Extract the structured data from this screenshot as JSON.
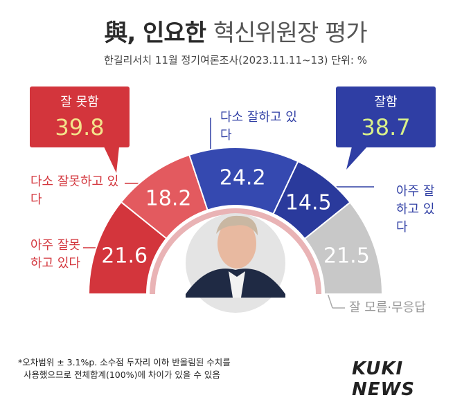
{
  "title": {
    "part1": "與, 인요한",
    "part2": "혁신위원장 평가"
  },
  "subtitle": "한길리서치 11월 정기여론조사(2023.11.11~13) 단위: %",
  "callouts": {
    "bad": {
      "label": "잘 못함",
      "value": "39.8"
    },
    "good": {
      "label": "잘함",
      "value": "38.7"
    }
  },
  "annotations": {
    "somewhat_bad": "다소 잘못하고 있다",
    "very_bad": "아주 잘못하고 있다",
    "somewhat_good": "다소 잘하고 있다",
    "very_good": "아주 잘하고 있다",
    "dont_know": "잘 모름·무응답"
  },
  "footnote": [
    "*오차범위 ± 3.1%p. 소수점 두자리 이하 반올림된 수치를",
    "사용했으므로 전체합계(100%)에 차이가 있을 수 있음"
  ],
  "logo": "KUKI NEWS",
  "colors": {
    "very_bad": "#d3353c",
    "somewhat_bad": "#e35a5f",
    "somewhat_good": "#3549b0",
    "very_good": "#2a3a9c",
    "dont_know": "#c8c8c8"
  },
  "chart_data": {
    "type": "pie",
    "title": "",
    "categories": [
      "아주 잘못하고 있다",
      "다소 잘못하고 있다",
      "다소 잘하고 있다",
      "아주 잘하고 있다",
      "잘 모름·무응답"
    ],
    "values": [
      21.6,
      18.2,
      24.2,
      14.5,
      21.5
    ],
    "labels": [
      "21.6",
      "18.2",
      "24.2",
      "14.5",
      "21.5"
    ]
  }
}
